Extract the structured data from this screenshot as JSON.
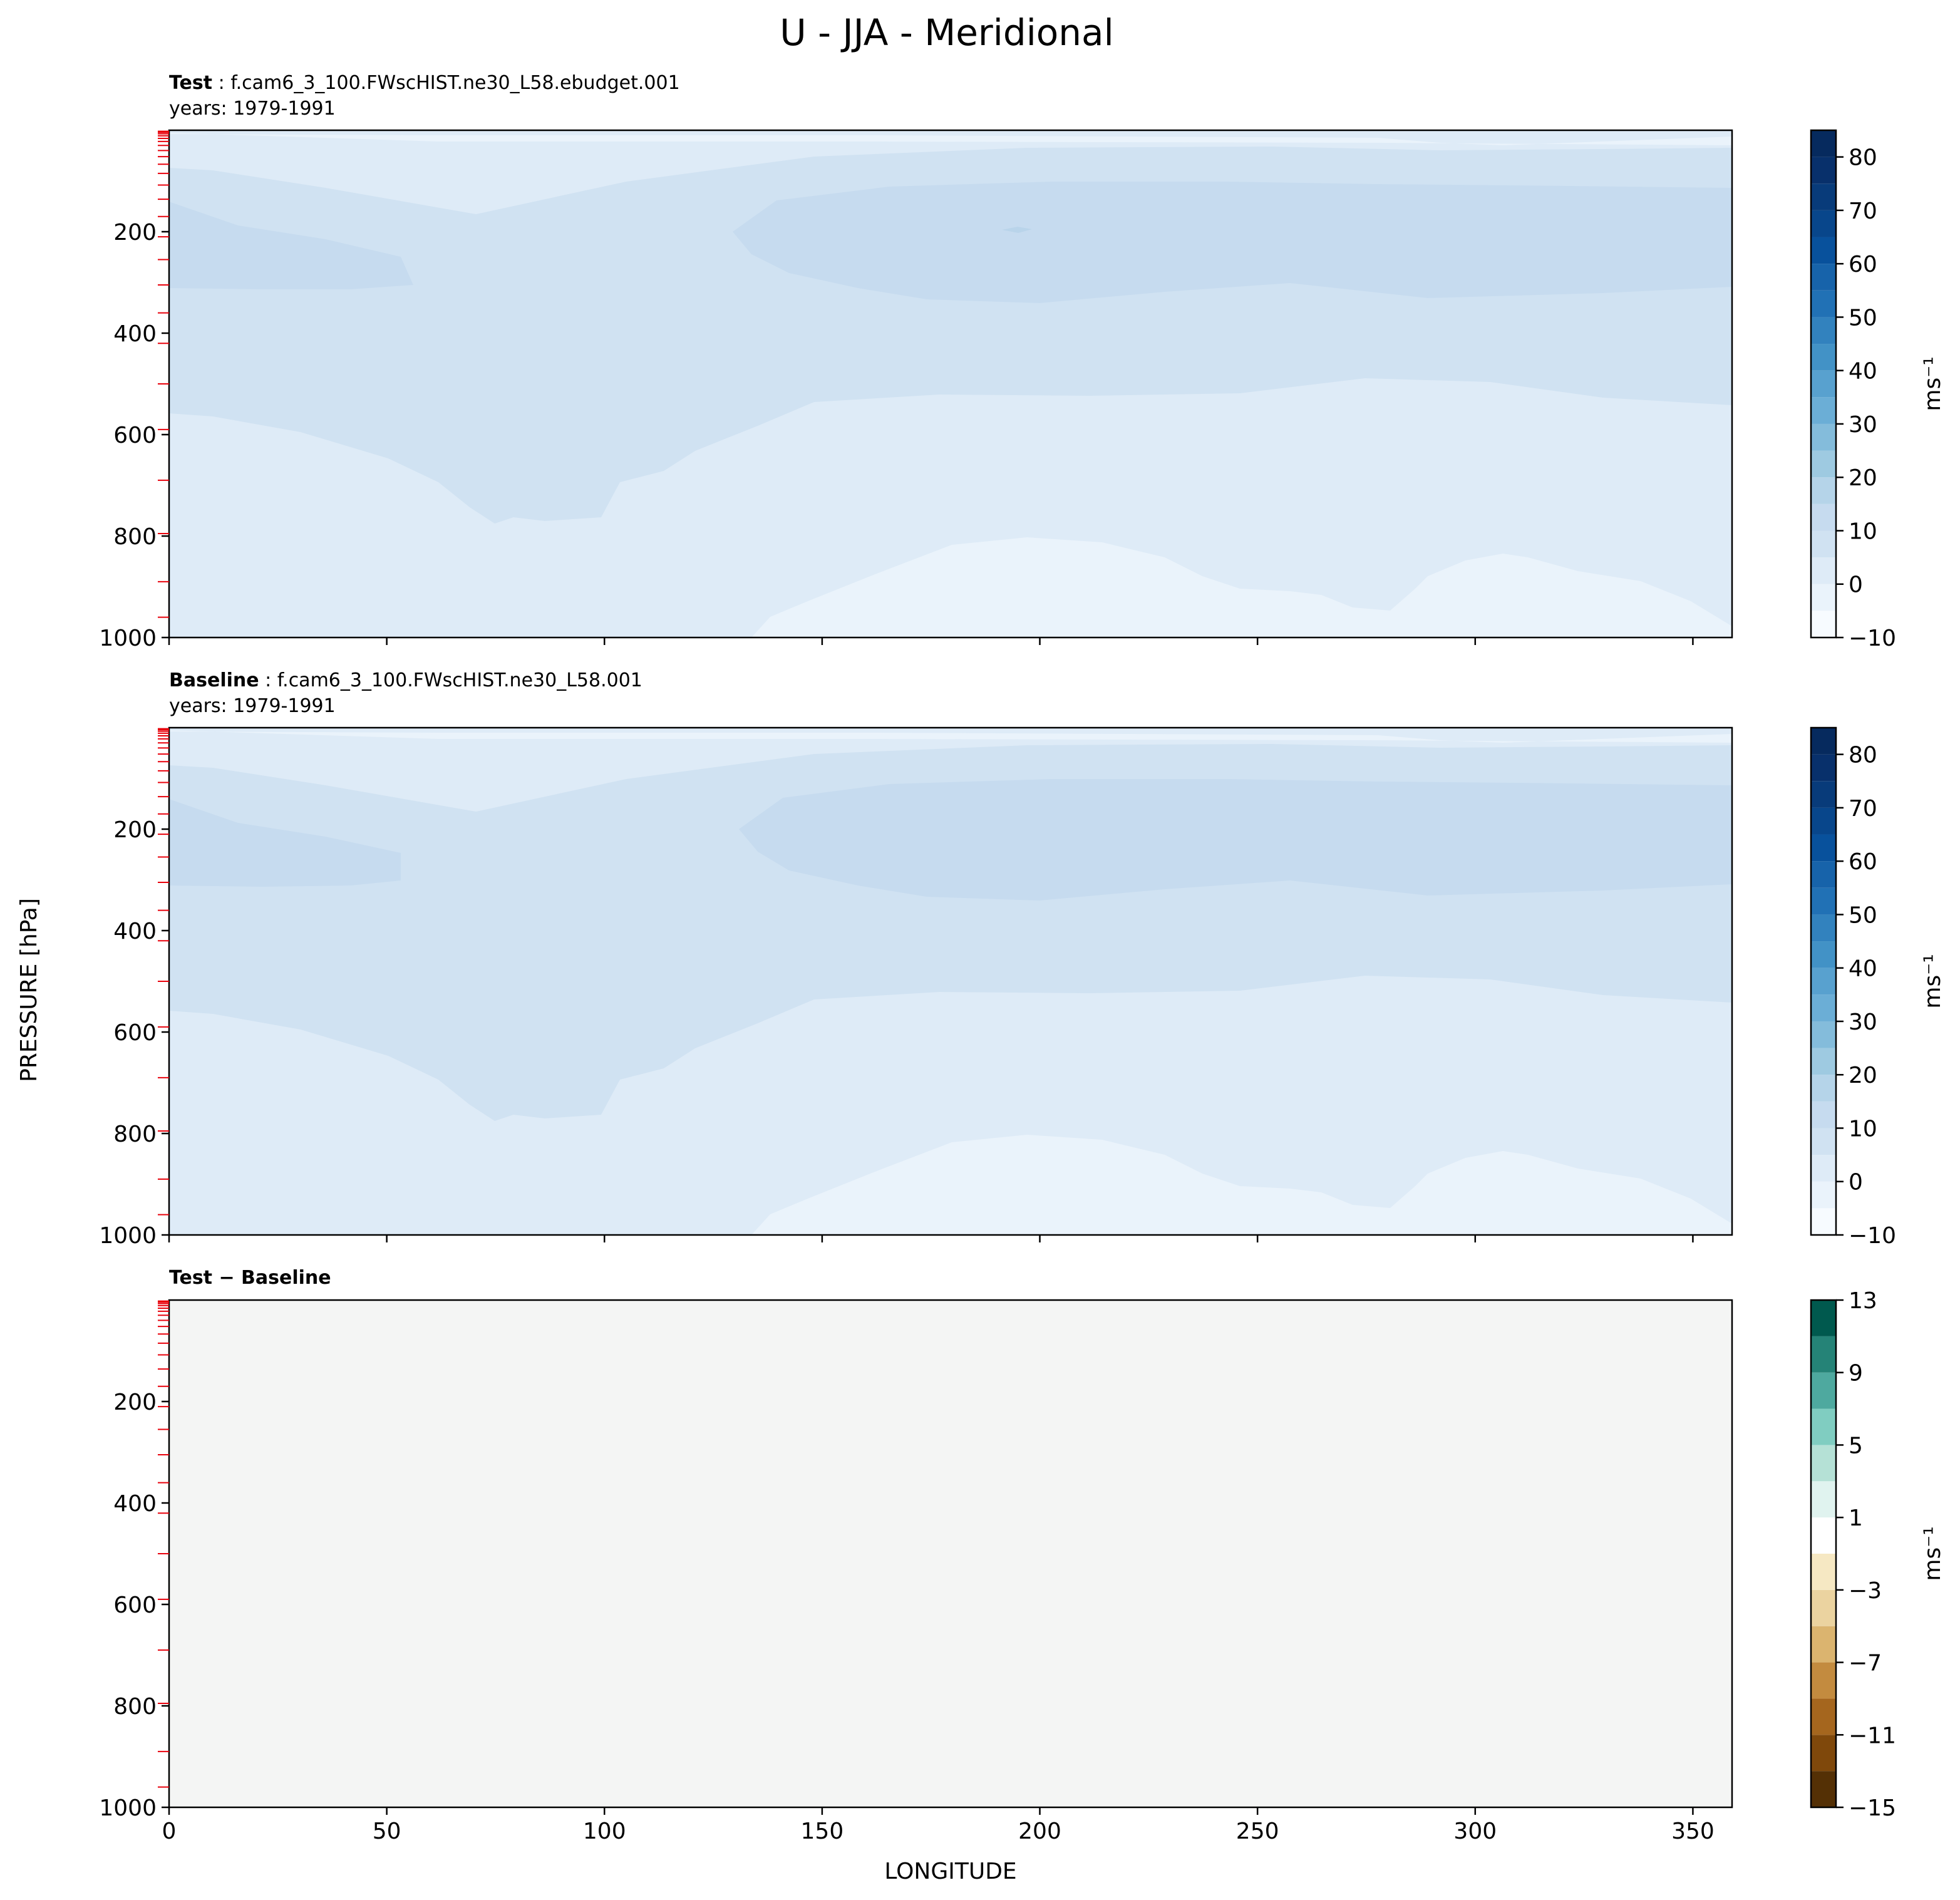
{
  "figure": {
    "title": "U - JJA - Meridional",
    "ylabel": "PRESSURE [hPa]",
    "xlabel": "LONGITUDE"
  },
  "chart_data": [
    {
      "type": "heatmap",
      "panel": "test",
      "label_bold": "Test",
      "label_rest": " : f.cam6_3_100.FWscHIST.ne30_L58.ebudget.001",
      "years_text": "years: 1979-1991",
      "x_range": [
        0,
        359
      ],
      "x_ticks": [
        0,
        50,
        100,
        150,
        200,
        250,
        300,
        350
      ],
      "y_range": [
        1000,
        0
      ],
      "y_ticks": [
        200,
        400,
        600,
        800,
        1000
      ],
      "colorbar": {
        "label": "ms⁻¹",
        "levels": [
          -10,
          -5,
          0,
          5,
          10,
          15,
          20,
          25,
          30,
          35,
          40,
          45,
          50,
          55,
          60,
          65,
          70,
          75,
          80,
          85
        ],
        "tick_labels": [
          "−10",
          "0",
          "10",
          "20",
          "30",
          "40",
          "50",
          "60",
          "70",
          "80"
        ],
        "colors": [
          "#f7fbff",
          "#eaf3fb",
          "#deebf7",
          "#d0e2f2",
          "#c6dbef",
          "#b5d4e9",
          "#9ecae1",
          "#84bcdb",
          "#6baed6",
          "#58a1cf",
          "#4292c6",
          "#3282be",
          "#2171b5",
          "#1763aa",
          "#08519c",
          "#08468b",
          "#083b7a",
          "#08306b",
          "#062a5e"
        ]
      },
      "band_colors": [
        "#eaf3fb",
        "#deebf7",
        "#d0e2f2",
        "#c6dbef"
      ]
    },
    {
      "type": "heatmap",
      "panel": "baseline",
      "label_bold": "Baseline",
      "label_rest": " : f.cam6_3_100.FWscHIST.ne30_L58.001",
      "years_text": "years: 1979-1991",
      "x_range": [
        0,
        359
      ],
      "x_ticks": [
        0,
        50,
        100,
        150,
        200,
        250,
        300,
        350
      ],
      "y_range": [
        1000,
        0
      ],
      "y_ticks": [
        200,
        400,
        600,
        800,
        1000
      ],
      "colorbar": {
        "label": "ms⁻¹",
        "levels": [
          -10,
          -5,
          0,
          5,
          10,
          15,
          20,
          25,
          30,
          35,
          40,
          45,
          50,
          55,
          60,
          65,
          70,
          75,
          80,
          85
        ],
        "tick_labels": [
          "−10",
          "0",
          "10",
          "20",
          "30",
          "40",
          "50",
          "60",
          "70",
          "80"
        ],
        "colors": [
          "#f7fbff",
          "#eaf3fb",
          "#deebf7",
          "#d0e2f2",
          "#c6dbef",
          "#b5d4e9",
          "#9ecae1",
          "#84bcdb",
          "#6baed6",
          "#58a1cf",
          "#4292c6",
          "#3282be",
          "#2171b5",
          "#1763aa",
          "#08519c",
          "#08468b",
          "#083b7a",
          "#08306b",
          "#062a5e"
        ]
      },
      "band_colors": [
        "#eaf3fb",
        "#deebf7",
        "#d0e2f2",
        "#c6dbef"
      ]
    },
    {
      "type": "heatmap",
      "panel": "difference",
      "label_bold": "Test − Baseline",
      "label_rest": "",
      "years_text": "",
      "x_range": [
        0,
        359
      ],
      "x_ticks": [
        0,
        50,
        100,
        150,
        200,
        250,
        300,
        350
      ],
      "x_tick_labels": [
        "0",
        "50",
        "100",
        "150",
        "200",
        "250",
        "300",
        "350"
      ],
      "y_range": [
        1000,
        0
      ],
      "y_ticks": [
        200,
        400,
        600,
        800,
        1000
      ],
      "field_value": 0,
      "field_color": "#f4f5f4",
      "colorbar": {
        "label": "ms⁻¹",
        "levels": [
          -15,
          -13,
          -11,
          -9,
          -7,
          -5,
          -3,
          -1,
          1,
          3,
          5,
          7,
          9,
          11,
          13
        ],
        "tick_labels": [
          "−15",
          "−11",
          "−7",
          "−3",
          "1",
          "5",
          "9",
          "13"
        ],
        "tick_values": [
          -15,
          -11,
          -7,
          -3,
          1,
          5,
          9,
          13
        ],
        "colors": [
          "#543005",
          "#7f480b",
          "#a5661e",
          "#c38b3f",
          "#dbb46f",
          "#ebd3a0",
          "#f6e8c3",
          "#ffffff",
          "#e0f3ef",
          "#b5e1d6",
          "#80cdc1",
          "#4ea99f",
          "#258377",
          "#00594e"
        ]
      }
    }
  ],
  "level_ticks_hpa": [
    2,
    4,
    7,
    11,
    16,
    22,
    30,
    40,
    52,
    67,
    85,
    108,
    136,
    170,
    210,
    255,
    305,
    360,
    420,
    500,
    590,
    690,
    795,
    890,
    960
  ]
}
